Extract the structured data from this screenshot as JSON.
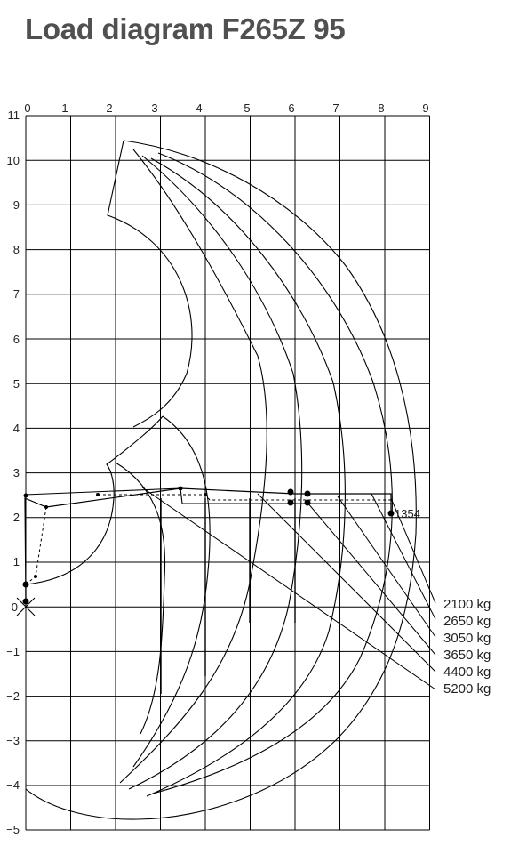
{
  "title": "Load diagram F265Z 95",
  "diagram": {
    "x_ticks": [
      "0",
      "1",
      "2",
      "3",
      "4",
      "5",
      "6",
      "7",
      "8",
      "9"
    ],
    "y_ticks": [
      "11",
      "10",
      "9",
      "8",
      "7",
      "6",
      "5",
      "4",
      "3",
      "2",
      "1",
      "0",
      "−1",
      "−2",
      "−3",
      "−4",
      "−5"
    ],
    "reach_label": "1354",
    "load_classes": [
      "2100 kg",
      "2650 kg",
      "3050 kg",
      "3650 kg",
      "4400 kg",
      "5200 kg"
    ]
  }
}
